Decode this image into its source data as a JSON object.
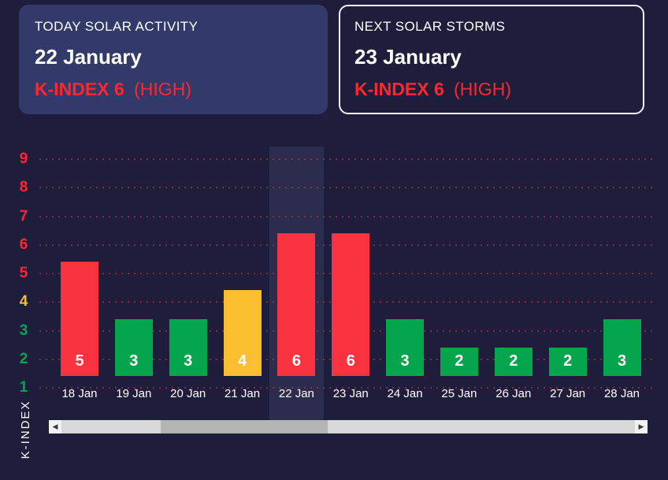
{
  "header": {
    "today": {
      "title": "TODAY SOLAR ACTIVITY",
      "date": "22 January",
      "kindex": "K-INDEX 6",
      "level": "(HIGH)"
    },
    "next": {
      "title": "NEXT SOLAR STORMS",
      "date": "23 January",
      "kindex": "K-INDEX 6",
      "level": "(HIGH)"
    }
  },
  "chart_data": {
    "type": "bar",
    "title": "",
    "categories": [
      "18 Jan",
      "19 Jan",
      "20 Jan",
      "21 Jan",
      "22 Jan",
      "23 Jan",
      "24 Jan",
      "25 Jan",
      "26 Jan",
      "27 Jan",
      "28 Jan"
    ],
    "values": [
      5,
      3,
      3,
      4,
      6,
      6,
      3,
      2,
      2,
      2,
      3
    ],
    "xlabel": "",
    "ylabel": "K-INDEX",
    "yticks": [
      1,
      2,
      3,
      4,
      5,
      6,
      7,
      8,
      9
    ],
    "ylim": [
      0,
      9
    ],
    "grid": "dotted-horizontal",
    "legend": "none",
    "highlighted_category": "22 Jan",
    "value_color_rule": {
      "green_max": 3,
      "yellow": 4,
      "red_min": 5
    }
  },
  "colors": {
    "background": "#1e1e3c",
    "card_background": "#313a68",
    "card_border": "#f2f3f7",
    "red": "#f8323e",
    "red_text": "#ff2630",
    "yellow": "#fbbe2e",
    "green": "#04a54c",
    "white": "#ffffff",
    "grid_dot": "rgba(253,60,70,0.45)",
    "scrollbar_track": "#d8d8d8",
    "scrollbar_thumb": "#b4b4b4"
  },
  "scrollbar": {
    "left_arrow": "◀",
    "right_arrow": "▶"
  }
}
